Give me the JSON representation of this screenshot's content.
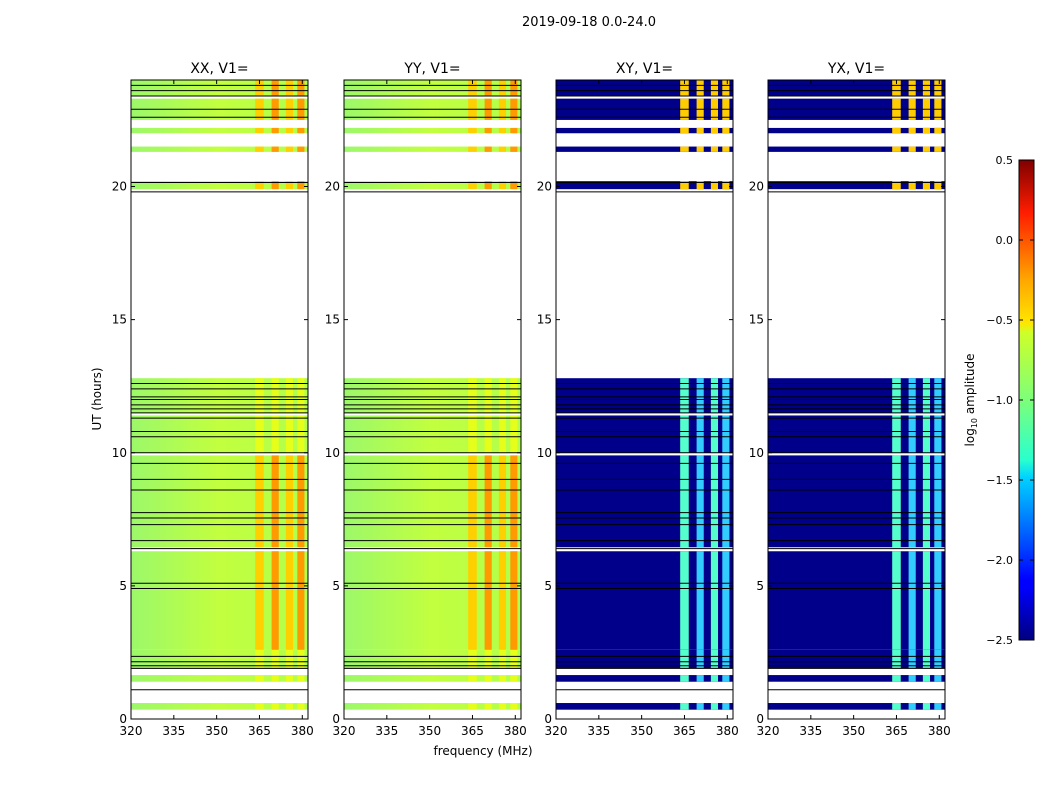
{
  "chart_data": {
    "type": "heatmap",
    "title": "2019-09-18 0.0-24.0",
    "xlabel": "frequency (MHz)",
    "ylabel": "UT (hours)",
    "xlim": [
      320,
      382
    ],
    "ylim": [
      0,
      24
    ],
    "xticks": [
      "320",
      "335",
      "350",
      "365",
      "380"
    ],
    "yticks": [
      "0",
      "5",
      "10",
      "15",
      "20"
    ],
    "panels": [
      {
        "title": "XX, V1=",
        "kind": "auto"
      },
      {
        "title": "YY, V1=",
        "kind": "auto"
      },
      {
        "title": "XY, V1=",
        "kind": "cross"
      },
      {
        "title": "YX, V1=",
        "kind": "cross"
      }
    ],
    "data_segments_ut": [
      [
        0.35,
        0.6
      ],
      [
        1.4,
        1.65
      ],
      [
        1.9,
        2.6
      ],
      [
        2.6,
        6.3
      ],
      [
        6.45,
        9.9
      ],
      [
        10.0,
        11.4
      ],
      [
        11.5,
        12.8
      ],
      [
        19.9,
        20.2
      ],
      [
        21.3,
        21.5
      ],
      [
        22.0,
        22.2
      ],
      [
        22.5,
        23.3
      ],
      [
        23.4,
        24.0
      ]
    ],
    "flagged_lines_ut": [
      1.1,
      1.9,
      2.0,
      2.15,
      2.35,
      4.9,
      5.1,
      6.4,
      6.7,
      7.3,
      7.55,
      7.75,
      8.6,
      9.0,
      9.6,
      10.0,
      10.6,
      10.8,
      11.3,
      11.5,
      11.65,
      11.8,
      12.0,
      12.1,
      12.4,
      12.6,
      19.8,
      20.15,
      22.6,
      22.9,
      23.4,
      23.6,
      23.8
    ],
    "rfi_bands_mhz": [
      {
        "center": 365,
        "width": 3.0
      },
      {
        "center": 370.5,
        "width": 2.5
      },
      {
        "center": 375.5,
        "width": 2.5
      },
      {
        "center": 379.5,
        "width": 2.5
      }
    ],
    "colorbar": {
      "label": "log",
      "label_sub": "10",
      "label_suffix": " amplitude",
      "min": -2.5,
      "max": 0.5,
      "ticks": [
        "0.5",
        "0.0",
        "−0.5",
        "−1.0",
        "−1.5",
        "−2.0",
        "−2.5"
      ],
      "tick_values": [
        0.5,
        0.0,
        -0.5,
        -1.0,
        -1.5,
        -2.0,
        -2.5
      ]
    }
  }
}
